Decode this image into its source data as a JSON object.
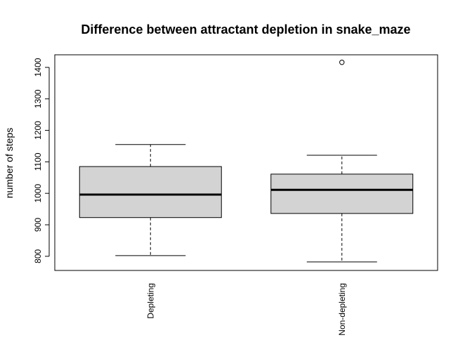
{
  "chart_data": {
    "type": "box",
    "title": "Difference between attractant depletion in snake_maze",
    "ylabel": "number of steps",
    "xlabel": "",
    "ylim": [
      755,
      1440
    ],
    "yticks": [
      800,
      900,
      1000,
      1100,
      1200,
      1300,
      1400
    ],
    "categories": [
      "Depleting",
      "Non-depleting"
    ],
    "boxes": [
      {
        "category": "Depleting",
        "min": 802,
        "q1": 923,
        "median": 996,
        "q3": 1085,
        "max": 1155,
        "outliers": []
      },
      {
        "category": "Non-depleting",
        "min": 782,
        "q1": 936,
        "median": 1011,
        "q3": 1061,
        "max": 1121,
        "outliers": [
          1416
        ]
      }
    ],
    "box_fill": "#d3d3d3",
    "grid": false
  }
}
